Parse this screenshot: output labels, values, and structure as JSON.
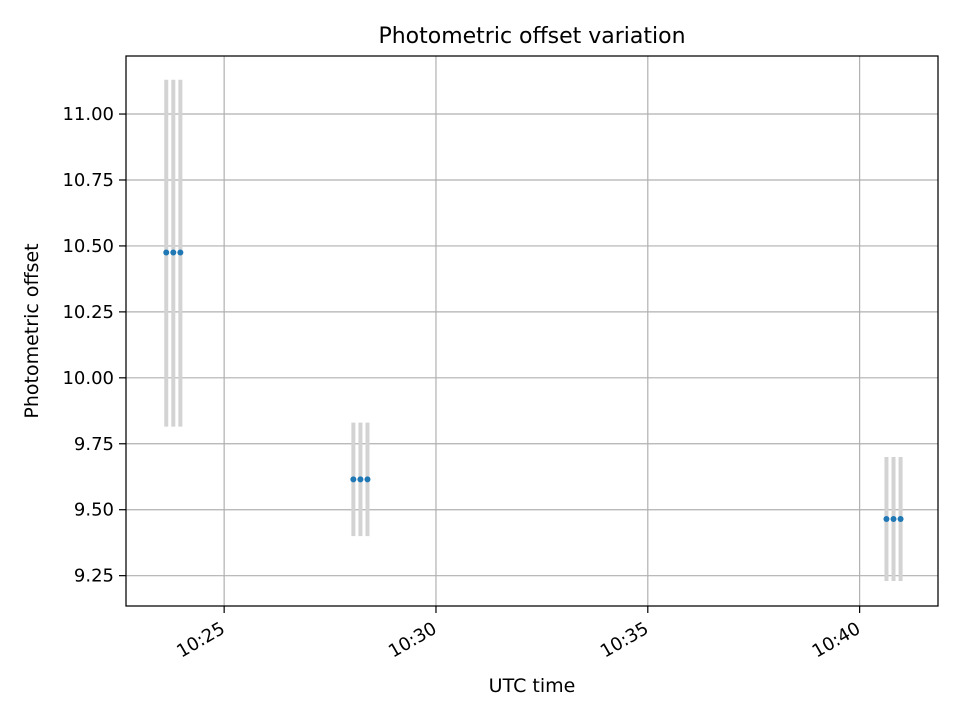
{
  "chart_data": {
    "type": "scatter",
    "title": "Photometric offset variation",
    "xlabel": "UTC time",
    "ylabel": "Photometric offset",
    "xlim": [
      "10:22:41",
      "10:41:51"
    ],
    "ylim": [
      9.135,
      11.22
    ],
    "x_ticks": [
      "10:25",
      "10:30",
      "10:35",
      "10:40"
    ],
    "y_ticks": [
      "9.25",
      "9.50",
      "9.75",
      "10.00",
      "10.25",
      "10.50",
      "10.75",
      "11.00"
    ],
    "grid": true,
    "marker_color": "#1f77b4",
    "errorbar_color": "#d3d3d3",
    "points": [
      {
        "x": "10:23:38",
        "y": 10.475,
        "yerr_low": 9.815,
        "yerr_high": 11.13
      },
      {
        "x": "10:23:48",
        "y": 10.475,
        "yerr_low": 9.815,
        "yerr_high": 11.13
      },
      {
        "x": "10:23:58",
        "y": 10.475,
        "yerr_low": 9.815,
        "yerr_high": 11.13
      },
      {
        "x": "10:28:03",
        "y": 9.615,
        "yerr_low": 9.4,
        "yerr_high": 9.83
      },
      {
        "x": "10:28:13",
        "y": 9.615,
        "yerr_low": 9.4,
        "yerr_high": 9.83
      },
      {
        "x": "10:28:23",
        "y": 9.615,
        "yerr_low": 9.4,
        "yerr_high": 9.83
      },
      {
        "x": "10:40:38",
        "y": 9.465,
        "yerr_low": 9.23,
        "yerr_high": 9.7
      },
      {
        "x": "10:40:48",
        "y": 9.465,
        "yerr_low": 9.23,
        "yerr_high": 9.7
      },
      {
        "x": "10:40:58",
        "y": 9.465,
        "yerr_low": 9.23,
        "yerr_high": 9.7
      }
    ]
  }
}
